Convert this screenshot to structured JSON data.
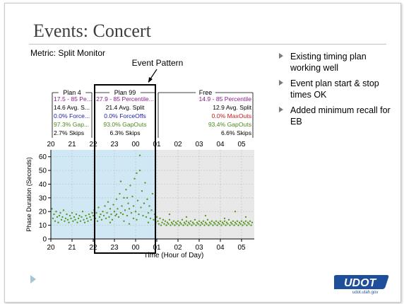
{
  "slide": {
    "title": "Events: Concert",
    "metric_label": "Metric: Split Monitor",
    "bullets": [
      "Existing timing plan working well",
      "Event plan start & stop times OK",
      "Added minimum recall for EB"
    ],
    "logo_text": "UDOT",
    "logo_url": "udot.utah.gov"
  },
  "annotation": {
    "label": "Event Pattern"
  },
  "plans": [
    {
      "name": "Plan 4",
      "rows": [
        "17.5 - 85 Pe...",
        "14.6 Avg. S...",
        "0.0% Force...",
        "97.3% Gap...",
        "2.7% Skips"
      ]
    },
    {
      "name": "Plan 99",
      "rows": [
        "27.9 - 85 Percentile...",
        "21.4 Avg. Split",
        "0.0% ForceOffs",
        "93.0% GapOuts",
        "6.3% Skips"
      ]
    },
    {
      "name": "Free",
      "rows": [
        "14.9 - 85 Percentile",
        "12.9 Avg. Split",
        "0.0% MaxOuts",
        "93.4% GapOuts",
        "6.6% Skips"
      ]
    }
  ],
  "row_colors": [
    "#8b1a8b",
    "#000000",
    "#1a1aa8",
    "#4e8a1e",
    "#000000"
  ],
  "row_colors_free": [
    "#8b1a8b",
    "#000000",
    "#d01818",
    "#4e8a1e",
    "#000000"
  ],
  "chart_data": {
    "type": "scatter",
    "title": "",
    "xlabel": "Time (Hour of Day)",
    "ylabel": "Phase Duration (Seconds)",
    "x_tick_labels": [
      "20",
      "21",
      "22",
      "23",
      "00",
      "01",
      "02",
      "03",
      "04",
      "05"
    ],
    "x_hours": [
      20,
      21,
      22,
      23,
      24,
      25,
      26,
      27,
      28,
      29
    ],
    "xlim": [
      20,
      29.6
    ],
    "ylim": [
      0,
      65
    ],
    "y_ticks": [
      0,
      10,
      20,
      30,
      40,
      50,
      60
    ],
    "grid": true,
    "regions": [
      {
        "name": "Plan 4",
        "from": 20,
        "to": 22,
        "color": "#cfe8f3"
      },
      {
        "name": "Plan 99",
        "from": 22,
        "to": 25,
        "color": "#cfe8f3"
      },
      {
        "name": "Free",
        "from": 25,
        "to": 29.6,
        "color": "#e8e8e8"
      }
    ],
    "event_window": [
      22,
      25
    ],
    "point_color": "#5a9a2a",
    "points": [
      [
        20.05,
        22
      ],
      [
        20.1,
        15
      ],
      [
        20.15,
        18
      ],
      [
        20.2,
        13
      ],
      [
        20.25,
        20
      ],
      [
        20.3,
        16
      ],
      [
        20.35,
        12
      ],
      [
        20.4,
        17
      ],
      [
        20.45,
        19
      ],
      [
        20.5,
        14
      ],
      [
        20.55,
        16
      ],
      [
        20.6,
        21
      ],
      [
        20.65,
        13
      ],
      [
        20.7,
        15
      ],
      [
        20.75,
        18
      ],
      [
        20.8,
        14
      ],
      [
        20.85,
        12
      ],
      [
        20.9,
        17
      ],
      [
        20.95,
        15
      ],
      [
        21.0,
        19
      ],
      [
        21.05,
        13
      ],
      [
        21.1,
        16
      ],
      [
        21.15,
        14
      ],
      [
        21.2,
        18
      ],
      [
        21.25,
        12
      ],
      [
        21.3,
        15
      ],
      [
        21.35,
        17
      ],
      [
        21.4,
        13
      ],
      [
        21.45,
        16
      ],
      [
        21.5,
        20
      ],
      [
        21.55,
        14
      ],
      [
        21.6,
        12
      ],
      [
        21.65,
        17
      ],
      [
        21.7,
        15
      ],
      [
        21.75,
        13
      ],
      [
        21.8,
        18
      ],
      [
        21.85,
        16
      ],
      [
        21.9,
        14
      ],
      [
        21.95,
        19
      ],
      [
        22.0,
        17
      ],
      [
        22.05,
        21
      ],
      [
        22.1,
        15
      ],
      [
        22.15,
        19
      ],
      [
        22.2,
        13
      ],
      [
        22.25,
        23
      ],
      [
        22.3,
        16
      ],
      [
        22.35,
        18
      ],
      [
        22.4,
        14
      ],
      [
        22.45,
        20
      ],
      [
        22.5,
        17
      ],
      [
        22.55,
        24
      ],
      [
        22.6,
        15
      ],
      [
        22.65,
        19
      ],
      [
        22.7,
        27
      ],
      [
        22.75,
        16
      ],
      [
        22.8,
        22
      ],
      [
        22.85,
        18
      ],
      [
        22.9,
        14
      ],
      [
        22.95,
        25
      ],
      [
        23.0,
        20
      ],
      [
        23.05,
        17
      ],
      [
        23.1,
        29
      ],
      [
        23.15,
        22
      ],
      [
        23.2,
        16
      ],
      [
        23.25,
        33
      ],
      [
        23.3,
        19
      ],
      [
        23.35,
        24
      ],
      [
        23.4,
        18
      ],
      [
        23.45,
        30
      ],
      [
        23.5,
        21
      ],
      [
        23.55,
        36
      ],
      [
        23.6,
        17
      ],
      [
        23.65,
        26
      ],
      [
        23.7,
        22
      ],
      [
        23.75,
        39
      ],
      [
        23.8,
        19
      ],
      [
        23.85,
        31
      ],
      [
        23.9,
        24
      ],
      [
        23.95,
        44
      ],
      [
        24.0,
        20
      ],
      [
        24.05,
        48
      ],
      [
        24.1,
        28
      ],
      [
        24.15,
        18
      ],
      [
        24.2,
        50
      ],
      [
        24.25,
        23
      ],
      [
        24.3,
        35
      ],
      [
        24.35,
        17
      ],
      [
        24.4,
        26
      ],
      [
        24.45,
        41
      ],
      [
        24.5,
        16
      ],
      [
        24.55,
        29
      ],
      [
        24.6,
        19
      ],
      [
        24.65,
        24
      ],
      [
        24.7,
        15
      ],
      [
        24.75,
        21
      ],
      [
        24.8,
        33
      ],
      [
        24.85,
        14
      ],
      [
        24.9,
        18
      ],
      [
        24.95,
        12
      ],
      [
        25.0,
        16
      ],
      [
        23.3,
        42
      ],
      [
        23.6,
        30
      ],
      [
        24.2,
        61
      ],
      [
        23.9,
        15
      ],
      [
        23.1,
        18
      ],
      [
        22.8,
        12
      ],
      [
        24.6,
        12
      ],
      [
        24.05,
        14
      ],
      [
        23.45,
        13
      ],
      [
        23.7,
        11
      ],
      [
        25.05,
        13
      ],
      [
        25.1,
        11
      ],
      [
        25.15,
        15
      ],
      [
        25.2,
        10
      ],
      [
        25.25,
        12
      ],
      [
        25.3,
        14
      ],
      [
        25.35,
        11
      ],
      [
        25.4,
        13
      ],
      [
        25.45,
        10
      ],
      [
        25.5,
        12
      ],
      [
        25.55,
        11
      ],
      [
        25.6,
        14
      ],
      [
        25.65,
        10
      ],
      [
        25.7,
        12
      ],
      [
        25.75,
        11
      ],
      [
        25.8,
        13
      ],
      [
        25.85,
        10
      ],
      [
        25.9,
        12
      ],
      [
        25.95,
        11
      ],
      [
        26.0,
        13
      ],
      [
        26.05,
        10
      ],
      [
        26.1,
        12
      ],
      [
        26.15,
        11
      ],
      [
        26.2,
        14
      ],
      [
        26.25,
        10
      ],
      [
        26.3,
        12
      ],
      [
        26.35,
        11
      ],
      [
        26.4,
        13
      ],
      [
        26.45,
        10
      ],
      [
        26.5,
        12
      ],
      [
        26.55,
        11
      ],
      [
        26.6,
        13
      ],
      [
        26.65,
        10
      ],
      [
        26.7,
        12
      ],
      [
        26.75,
        11
      ],
      [
        26.8,
        14
      ],
      [
        26.85,
        10
      ],
      [
        26.9,
        12
      ],
      [
        26.95,
        11
      ],
      [
        27.0,
        13
      ],
      [
        27.05,
        10
      ],
      [
        27.1,
        12
      ],
      [
        27.15,
        11
      ],
      [
        27.2,
        13
      ],
      [
        27.25,
        10
      ],
      [
        27.3,
        12
      ],
      [
        27.35,
        11
      ],
      [
        27.4,
        14
      ],
      [
        27.45,
        10
      ],
      [
        27.5,
        12
      ],
      [
        27.55,
        11
      ],
      [
        27.6,
        13
      ],
      [
        27.65,
        10
      ],
      [
        27.7,
        12
      ],
      [
        27.75,
        11
      ],
      [
        27.8,
        13
      ],
      [
        27.85,
        10
      ],
      [
        27.9,
        12
      ],
      [
        27.95,
        11
      ],
      [
        28.0,
        13
      ],
      [
        28.05,
        10
      ],
      [
        28.1,
        12
      ],
      [
        28.15,
        11
      ],
      [
        28.2,
        13
      ],
      [
        28.25,
        10
      ],
      [
        28.3,
        12
      ],
      [
        28.35,
        11
      ],
      [
        28.4,
        14
      ],
      [
        28.45,
        10
      ],
      [
        28.5,
        12
      ],
      [
        28.55,
        11
      ],
      [
        28.6,
        13
      ],
      [
        28.65,
        10
      ],
      [
        28.7,
        12
      ],
      [
        28.75,
        11
      ],
      [
        28.8,
        13
      ],
      [
        28.85,
        10
      ],
      [
        28.9,
        12
      ],
      [
        28.95,
        11
      ],
      [
        29.0,
        13
      ],
      [
        29.05,
        10
      ],
      [
        29.1,
        12
      ],
      [
        29.15,
        11
      ],
      [
        29.2,
        13
      ],
      [
        29.25,
        10
      ],
      [
        29.3,
        12
      ],
      [
        29.35,
        11
      ],
      [
        29.4,
        13
      ],
      [
        29.45,
        10
      ],
      [
        29.5,
        12
      ],
      [
        25.6,
        18
      ],
      [
        26.4,
        16
      ],
      [
        27.3,
        17
      ],
      [
        28.2,
        15
      ],
      [
        28.7,
        20
      ],
      [
        29.2,
        16
      ]
    ]
  }
}
